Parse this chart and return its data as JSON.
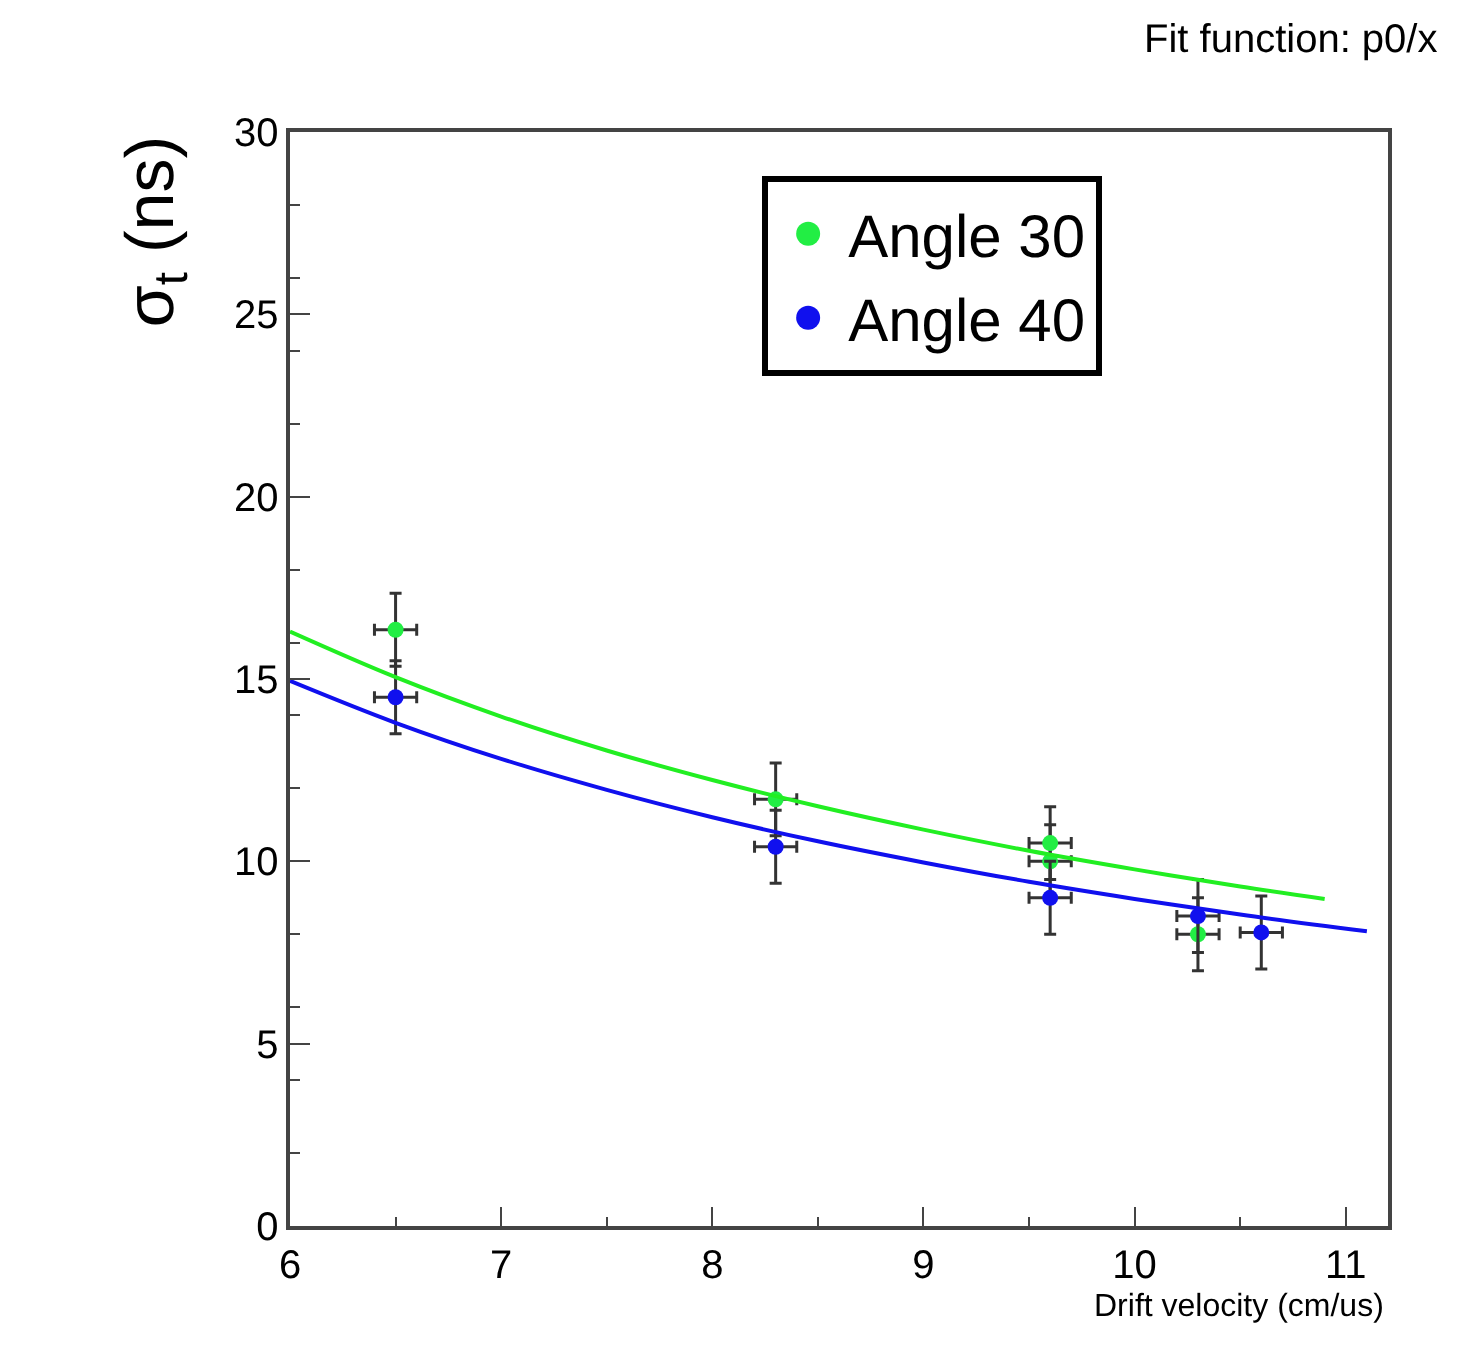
{
  "chart_data": {
    "type": "scatter",
    "xlabel": "Drift velocity (cm/us)",
    "ylabel": "σ$_{t}$ (ns)",
    "annotations": [
      "Fit function: p0/x"
    ],
    "xlim": [
      6,
      11.2
    ],
    "xticks": [
      6,
      7,
      8,
      9,
      10,
      11
    ],
    "ylim": [
      0,
      30
    ],
    "yticks": [
      0,
      5,
      10,
      15,
      20,
      25,
      30
    ],
    "grid": false,
    "legend": "top right",
    "marker": "circle",
    "series": [
      {
        "name": "Angle 30",
        "color": "#22ee44",
        "x": [
          6.5,
          8.3,
          9.6,
          9.6,
          10.3
        ],
        "values": [
          16.35,
          11.7,
          10.5,
          10.0,
          8.0
        ],
        "errors": [
          1.0,
          1.0,
          1.0,
          1.0,
          1.0
        ],
        "xerrors": [
          0.1,
          0.1,
          0.1,
          0.1,
          0.1
        ]
      },
      {
        "name": "Angle 40",
        "color": "#1010ee",
        "x": [
          6.5,
          8.3,
          9.6,
          10.3,
          10.6
        ],
        "values": [
          14.5,
          10.4,
          9.0,
          8.5,
          8.05
        ],
        "errors": [
          1.0,
          1.0,
          1.0,
          1.0,
          1.0
        ],
        "xerrors": [
          0.1,
          0.1,
          0.1,
          0.1,
          0.1
        ]
      },
      {
        "type": "line",
        "marker": "none",
        "color": "#22ee22",
        "x": [
          6,
          6.5,
          7,
          7.5,
          8,
          8.5,
          9,
          9.5,
          10,
          10.5,
          10.9
        ],
        "values": [
          16.3,
          15.05,
          13.97,
          13.04,
          12.23,
          11.51,
          10.87,
          10.29,
          9.78,
          9.31,
          8.97
        ]
      },
      {
        "type": "line",
        "marker": "none",
        "color": "#1010ee",
        "x": [
          6,
          6.5,
          7,
          7.5,
          8,
          8.5,
          9,
          9.5,
          10,
          10.5,
          11.1
        ],
        "values": [
          14.95,
          13.8,
          12.81,
          11.96,
          11.21,
          10.55,
          9.97,
          9.44,
          8.97,
          8.54,
          8.08
        ]
      }
    ]
  }
}
